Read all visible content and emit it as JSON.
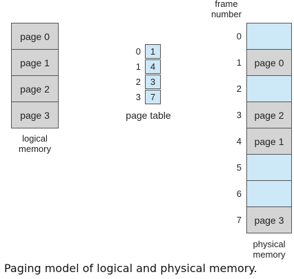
{
  "colors": {
    "page_fill": "#d4d4d4",
    "empty_fill": "#cde8f7",
    "table_fill": "#cde8f7",
    "border": "#555555"
  },
  "logical_memory": {
    "pages": [
      "page 0",
      "page 1",
      "page 2",
      "page 3"
    ],
    "label_line1": "logical",
    "label_line2": "memory"
  },
  "page_table": {
    "indices": [
      "0",
      "1",
      "2",
      "3"
    ],
    "entries": [
      "1",
      "4",
      "3",
      "7"
    ],
    "label": "page table"
  },
  "physical_memory": {
    "header_line1": "frame",
    "header_line2": "number",
    "frame_numbers": [
      "0",
      "1",
      "2",
      "3",
      "4",
      "5",
      "6",
      "7"
    ],
    "frames": [
      "",
      "page 0",
      "",
      "page 2",
      "page 1",
      "",
      "",
      "page 3"
    ],
    "label_line1": "physical",
    "label_line2": "memory"
  },
  "caption": "Paging model of logical and physical memory."
}
